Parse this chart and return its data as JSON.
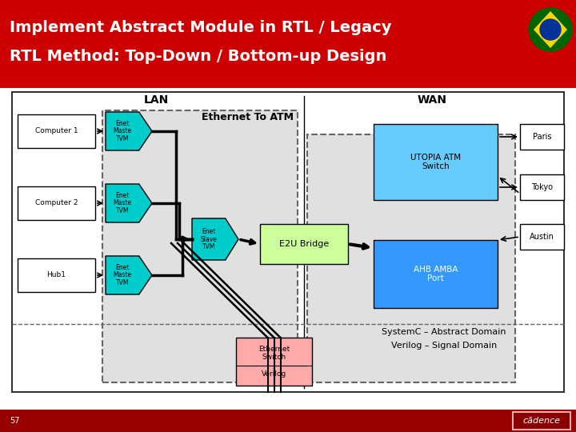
{
  "title_line1": "Implement Abstract Module in RTL / Legacy",
  "title_line2": "RTL Method: Top-Down / Bottom-up Design",
  "slide_number": "57",
  "lan_label": "LAN",
  "wan_label": "WAN",
  "eth_atm_label": "Ethernet To ATM",
  "systemc_label": "SystemC – Abstract Domain",
  "verilog_label": "Verilog – Signal Domain",
  "computer1_label": "Computer 1",
  "computer2_label": "Computer 2",
  "hub1_label": "Hub1",
  "paris_label": "Paris",
  "tokyo_label": "Tokyo",
  "austin_label": "Austin",
  "utopia_label": "UTOPIA ATM\nSwitch",
  "ahb_label": "AHB AMBA\nPort",
  "e2u_label": "E2U Bridge",
  "enet_slave_label": "Enet\nSlave\nTVM",
  "eth_switch_label": "Ethernet\nSwitch",
  "verilog_box_label": "Verilog",
  "enet_master_label": "Enet\nMaste\nTVM",
  "header_color": "#cc0000",
  "footer_color": "#990000",
  "tvm_color": "#00cccc",
  "e2u_color": "#ccff99",
  "utopia_color": "#66ccff",
  "ahb_color": "#3399ff",
  "eth_switch_color": "#ffaaaa",
  "gray_box_color": "#e0e0e0",
  "white": "#ffffff",
  "black": "#000000"
}
